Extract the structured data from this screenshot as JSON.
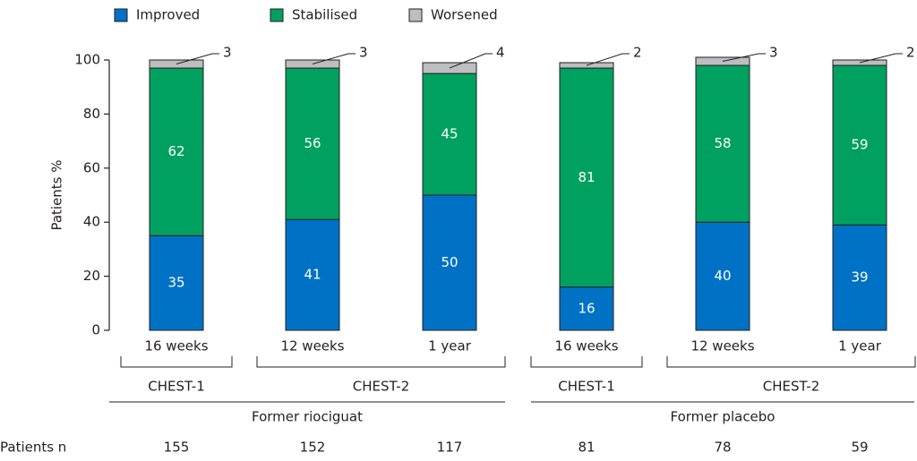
{
  "chart_data": {
    "type": "bar",
    "stacked": true,
    "ylabel": "Patients %",
    "categories": [
      "16 weeks",
      "12 weeks",
      "1 year",
      "16 weeks",
      "12 weeks",
      "1 year"
    ],
    "series": [
      {
        "name": "Improved",
        "color": "#0072c6",
        "values": [
          35,
          41,
          50,
          16,
          40,
          39
        ]
      },
      {
        "name": "Stabilised",
        "color": "#00a160",
        "values": [
          62,
          56,
          45,
          81,
          58,
          59
        ]
      },
      {
        "name": "Worsened",
        "color": "#bdbec0",
        "values": [
          3,
          3,
          4,
          2,
          3,
          2
        ]
      }
    ],
    "ylim": [
      0,
      100
    ],
    "yticks": [
      0,
      20,
      40,
      60,
      80,
      100
    ],
    "trial_groups": [
      {
        "label": "CHEST-1",
        "size": 1
      },
      {
        "label": "CHEST-2",
        "size": 2
      },
      {
        "label": "CHEST-1",
        "size": 1
      },
      {
        "label": "CHEST-2",
        "size": 2
      }
    ],
    "arm_groups": [
      {
        "label": "Former riociguat",
        "size": 3
      },
      {
        "label": "Former placebo",
        "size": 3
      }
    ],
    "patients_n": {
      "label": "Patients n",
      "values": [
        155,
        152,
        117,
        81,
        78,
        59
      ]
    }
  }
}
